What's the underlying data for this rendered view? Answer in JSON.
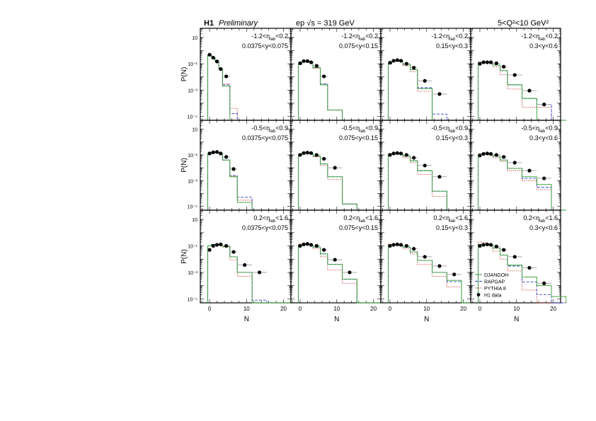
{
  "header": {
    "experiment": "H1",
    "status": "Preliminary",
    "energy": "ep √s = 319 GeV",
    "q2_range": "5<Q²<10 GeV²"
  },
  "chart_data": {
    "type": "histogram-grid",
    "xlabel": "N",
    "ylabel": "P(N)",
    "xlim": [
      -2.5,
      22
    ],
    "ylim": [
      5e-06,
      50
    ],
    "yscale": "log",
    "x_tick_labels": [
      "0",
      "10",
      "20"
    ],
    "x_ticks": [
      0,
      10,
      20
    ],
    "y_tick_labels": [
      "10",
      "10⁻¹",
      "10⁻³",
      "10⁻⁵"
    ],
    "y_ticks": [
      10,
      0.1,
      0.001,
      1e-05
    ],
    "bin_edges": [
      -0.5,
      0.5,
      1.5,
      2.5,
      3.5,
      5.5,
      7.5,
      11.5,
      15.5,
      19.5,
      23.5
    ],
    "data_x": [
      0,
      1,
      2,
      3,
      4.5,
      6.5,
      9.5,
      13.5,
      17.5
    ],
    "legend": {
      "placement": "bottom-left of last panel",
      "entries": [
        {
          "key": "djangoh",
          "label": "DJANGOH",
          "color": "#2e9a2e",
          "style": "solid"
        },
        {
          "key": "rapgap",
          "label": "RAPGAP",
          "color": "#3040c8",
          "style": "dashed"
        },
        {
          "key": "pythia",
          "label": "PYTHIA 8",
          "color": "#c83030",
          "style": "dotted"
        },
        {
          "key": "data",
          "label": "H1 data",
          "color": "#000000",
          "style": "marker"
        }
      ]
    },
    "panels": [
      {
        "eta": "-1.2<η_lab<0.2",
        "y": "0.0375<y<0.075",
        "data": [
          0.49,
          0.29,
          0.15,
          0.04,
          0.011
        ],
        "djangoh": [
          0.49,
          0.29,
          0.15,
          0.04,
          0.002,
          0,
          0,
          0,
          0,
          0
        ],
        "rapgap": [
          0.49,
          0.29,
          0.15,
          0.04,
          0.0025,
          1.6e-05,
          0,
          0,
          0,
          0
        ],
        "pythia": [
          0.49,
          0.29,
          0.15,
          0.04,
          0.003,
          4e-05,
          0,
          0,
          0,
          0
        ]
      },
      {
        "eta": "-1.2<η_lab<0.2",
        "y": "0.075<y<0.15",
        "data": [
          0.11,
          0.16,
          0.16,
          0.13,
          0.07,
          0.011
        ],
        "djangoh": [
          0.09,
          0.15,
          0.15,
          0.13,
          0.05,
          0.0025,
          3e-05,
          0,
          0,
          0
        ],
        "rapgap": [
          0.09,
          0.15,
          0.15,
          0.13,
          0.05,
          0.003,
          3e-05,
          0,
          0,
          0
        ],
        "pythia": [
          0.1,
          0.15,
          0.15,
          0.12,
          0.045,
          0.0025,
          3e-05,
          0,
          0,
          0
        ]
      },
      {
        "eta": "-1.2<η_lab<0.2",
        "y": "0.15<y<0.3",
        "data": [
          0.12,
          0.17,
          0.19,
          0.17,
          0.1,
          0.05,
          0.005,
          0.0005
        ],
        "djangoh": [
          0.1,
          0.16,
          0.17,
          0.15,
          0.09,
          0.035,
          0.0013,
          0,
          0,
          0
        ],
        "rapgap": [
          0.1,
          0.16,
          0.17,
          0.15,
          0.09,
          0.035,
          0.0015,
          1.5e-05,
          0,
          0
        ],
        "pythia": [
          0.12,
          0.17,
          0.17,
          0.14,
          0.07,
          0.025,
          0.0008,
          0,
          0,
          0
        ]
      },
      {
        "eta": "-1.2<η_lab<0.2",
        "y": "0.3<y<0.6",
        "data": [
          0.1,
          0.13,
          0.13,
          0.13,
          0.11,
          0.06,
          0.014,
          0.0009,
          8e-05
        ],
        "djangoh": [
          0.12,
          0.13,
          0.13,
          0.12,
          0.08,
          0.03,
          0.0025,
          0.00023,
          0,
          0
        ],
        "rapgap": [
          0.12,
          0.13,
          0.13,
          0.12,
          0.08,
          0.03,
          0.0025,
          0.00023,
          8e-05,
          0
        ],
        "pythia": [
          0.15,
          0.15,
          0.13,
          0.1,
          0.06,
          0.015,
          0.0012,
          5e-05,
          5e-05,
          0
        ]
      },
      {
        "eta": "-0.5<η_lab<0.9",
        "y": "0.0375<y<0.075",
        "data": [
          0.13,
          0.16,
          0.17,
          0.13,
          0.07,
          0.008
        ],
        "djangoh": [
          0.12,
          0.16,
          0.16,
          0.13,
          0.04,
          0.002,
          2e-05,
          0,
          0,
          0
        ],
        "rapgap": [
          0.12,
          0.16,
          0.16,
          0.13,
          0.04,
          0.0025,
          5e-05,
          0,
          0,
          0
        ],
        "pythia": [
          0.12,
          0.16,
          0.16,
          0.12,
          0.04,
          0.0022,
          3e-05,
          0,
          0,
          0
        ]
      },
      {
        "eta": "-0.5<η_lab<0.9",
        "y": "0.075<y<0.15",
        "data": [
          0.1,
          0.14,
          0.15,
          0.14,
          0.1,
          0.05,
          0.01
        ],
        "djangoh": [
          0.1,
          0.14,
          0.15,
          0.14,
          0.08,
          0.02,
          0.002,
          1.5e-05,
          0,
          0
        ],
        "rapgap": [
          0.1,
          0.14,
          0.15,
          0.14,
          0.08,
          0.02,
          0.002,
          1.5e-05,
          0,
          0
        ],
        "pythia": [
          0.11,
          0.15,
          0.15,
          0.13,
          0.07,
          0.015,
          0.0012,
          1.5e-05,
          0,
          0
        ]
      },
      {
        "eta": "-0.5<η_lab<0.9",
        "y": "0.15<y<0.3",
        "data": [
          0.1,
          0.13,
          0.14,
          0.13,
          0.1,
          0.06,
          0.015,
          0.002
        ],
        "djangoh": [
          0.11,
          0.13,
          0.14,
          0.12,
          0.08,
          0.035,
          0.006,
          0.00015,
          0,
          0
        ],
        "rapgap": [
          0.11,
          0.13,
          0.14,
          0.12,
          0.08,
          0.035,
          0.006,
          0.00015,
          0,
          0
        ],
        "pythia": [
          0.13,
          0.14,
          0.14,
          0.11,
          0.06,
          0.025,
          0.003,
          6e-05,
          0,
          0
        ]
      },
      {
        "eta": "-0.5<η_lab<0.9",
        "y": "0.3<y<0.6",
        "data": [
          0.09,
          0.12,
          0.13,
          0.12,
          0.1,
          0.07,
          0.025,
          0.006,
          0.0015
        ],
        "djangoh": [
          0.11,
          0.12,
          0.12,
          0.11,
          0.08,
          0.04,
          0.009,
          0.002,
          0.0005,
          0
        ],
        "rapgap": [
          0.11,
          0.12,
          0.12,
          0.11,
          0.08,
          0.04,
          0.009,
          0.0015,
          0.0003,
          0
        ],
        "pythia": [
          0.13,
          0.13,
          0.12,
          0.1,
          0.06,
          0.03,
          0.006,
          0.001,
          0.0002,
          0
        ]
      },
      {
        "eta": "0.2<η_lab<1.6",
        "y": "0.0375<y<0.075",
        "data": [
          0.05,
          0.1,
          0.12,
          0.13,
          0.1,
          0.035,
          0.0036,
          0.001
        ],
        "djangoh": [
          0.1,
          0.13,
          0.13,
          0.13,
          0.09,
          0.015,
          0.001,
          0,
          0,
          0
        ],
        "rapgap": [
          0.1,
          0.13,
          0.13,
          0.13,
          0.09,
          0.015,
          0.001,
          8e-06,
          0,
          0
        ],
        "pythia": [
          0.1,
          0.13,
          0.13,
          0.12,
          0.08,
          0.009,
          0.0005,
          0,
          0,
          0
        ]
      },
      {
        "eta": "0.2<η_lab<1.6",
        "y": "0.075<y<0.15",
        "data": [
          0.1,
          0.13,
          0.14,
          0.12,
          0.1,
          0.05,
          0.009,
          0.001
        ],
        "djangoh": [
          0.11,
          0.13,
          0.14,
          0.12,
          0.08,
          0.025,
          0.004,
          0.0003,
          0,
          0
        ],
        "rapgap": [
          0.11,
          0.13,
          0.14,
          0.12,
          0.08,
          0.025,
          0.004,
          0.0003,
          0,
          0
        ],
        "pythia": [
          0.14,
          0.15,
          0.14,
          0.11,
          0.06,
          0.015,
          0.0015,
          0.00015,
          0,
          0
        ]
      },
      {
        "eta": "0.2<η_lab<1.6",
        "y": "0.15<y<0.3",
        "data": [
          0.1,
          0.12,
          0.13,
          0.12,
          0.1,
          0.06,
          0.015,
          0.003,
          0.0007
        ],
        "djangoh": [
          0.11,
          0.13,
          0.13,
          0.12,
          0.08,
          0.035,
          0.008,
          0.001,
          0.00025,
          0
        ],
        "rapgap": [
          0.11,
          0.13,
          0.13,
          0.12,
          0.08,
          0.035,
          0.008,
          0.001,
          0.0002,
          0
        ],
        "pythia": [
          0.14,
          0.15,
          0.13,
          0.1,
          0.06,
          0.025,
          0.004,
          0.0005,
          8e-05,
          0
        ]
      },
      {
        "eta": "0.2<η_lab<1.6",
        "y": "0.3<y<0.6",
        "data": [
          0.1,
          0.12,
          0.13,
          0.12,
          0.09,
          0.05,
          0.015,
          0.0022,
          0.00015
        ],
        "djangoh": [
          0.13,
          0.13,
          0.13,
          0.12,
          0.07,
          0.02,
          0.0035,
          0.00045,
          0.0001,
          1.5e-05
        ],
        "rapgap": [
          0.13,
          0.13,
          0.13,
          0.12,
          0.07,
          0.02,
          0.003,
          0.00019,
          2.1e-05,
          0
        ],
        "pythia": [
          0.2,
          0.17,
          0.13,
          0.1,
          0.04,
          0.01,
          0.0013,
          4.6e-05,
          0,
          0
        ]
      }
    ]
  }
}
